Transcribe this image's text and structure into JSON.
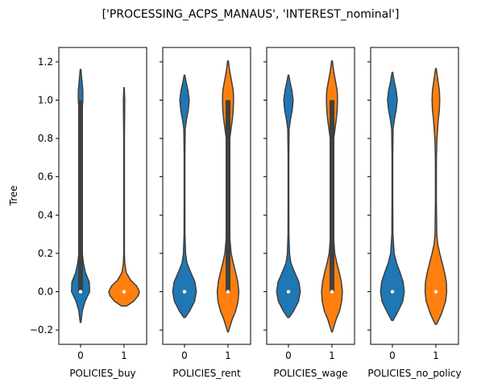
{
  "chart_data": {
    "type": "violin",
    "title": "['PROCESSING_ACPS_MANAUS', 'INTEREST_nominal']",
    "ylabel": "Tree",
    "ylim": [
      -0.275,
      1.275
    ],
    "yticks": [
      -0.2,
      0.0,
      0.2,
      0.4,
      0.6,
      0.8,
      1.0,
      1.2
    ],
    "ytick_labels": [
      "−0.2",
      "0.0",
      "0.2",
      "0.4",
      "0.6",
      "0.8",
      "1.0",
      "1.2"
    ],
    "sharey": true,
    "grid": false,
    "colors": {
      "0": "#1f77b4",
      "1": "#ff7f0e"
    },
    "panels": [
      {
        "xlabel": "POLICIES_buy",
        "categories": [
          "0",
          "1"
        ],
        "violins": [
          {
            "category": "0",
            "y_min": -0.16,
            "y_max": 1.16,
            "median": 0.0,
            "q1": 0.0,
            "q3": 1.0,
            "whisker_low": 0.0,
            "whisker_high": 1.0,
            "profile": [
              [
                -0.16,
                0.02
              ],
              [
                -0.1,
                0.1
              ],
              [
                -0.05,
                0.26
              ],
              [
                0.0,
                0.52
              ],
              [
                0.05,
                0.5
              ],
              [
                0.1,
                0.28
              ],
              [
                0.15,
                0.16
              ],
              [
                0.2,
                0.1
              ],
              [
                0.3,
                0.075
              ],
              [
                0.5,
                0.07
              ],
              [
                0.7,
                0.07
              ],
              [
                0.9,
                0.08
              ],
              [
                0.95,
                0.09
              ],
              [
                1.0,
                0.13
              ],
              [
                1.05,
                0.13
              ],
              [
                1.1,
                0.08
              ],
              [
                1.16,
                0.02
              ]
            ]
          },
          {
            "category": "1",
            "y_min": -0.075,
            "y_max": 1.065,
            "median": 0.0,
            "q1": 0.0,
            "q3": 0.0,
            "whisker_low": 0.0,
            "whisker_high": 0.0,
            "profile": [
              [
                -0.075,
                0.15
              ],
              [
                -0.05,
                0.55
              ],
              [
                -0.02,
                0.82
              ],
              [
                0.0,
                0.88
              ],
              [
                0.03,
                0.72
              ],
              [
                0.06,
                0.38
              ],
              [
                0.1,
                0.12
              ],
              [
                0.15,
                0.04
              ],
              [
                0.2,
                0.02
              ],
              [
                0.4,
                0.02
              ],
              [
                0.6,
                0.02
              ],
              [
                0.8,
                0.02
              ],
              [
                0.95,
                0.035
              ],
              [
                1.0,
                0.04
              ],
              [
                1.065,
                0.01
              ]
            ]
          }
        ]
      },
      {
        "xlabel": "POLICIES_rent",
        "categories": [
          "0",
          "1"
        ],
        "violins": [
          {
            "category": "0",
            "y_min": -0.135,
            "y_max": 1.13,
            "median": 0.0,
            "q1": 0.0,
            "q3": 0.0,
            "whisker_low": 0.0,
            "whisker_high": 0.0,
            "profile": [
              [
                -0.135,
                0.04
              ],
              [
                -0.1,
                0.3
              ],
              [
                -0.05,
                0.58
              ],
              [
                0.0,
                0.68
              ],
              [
                0.05,
                0.6
              ],
              [
                0.1,
                0.36
              ],
              [
                0.15,
                0.14
              ],
              [
                0.2,
                0.06
              ],
              [
                0.3,
                0.025
              ],
              [
                0.5,
                0.02
              ],
              [
                0.7,
                0.02
              ],
              [
                0.85,
                0.04
              ],
              [
                0.9,
                0.12
              ],
              [
                0.95,
                0.22
              ],
              [
                1.0,
                0.27
              ],
              [
                1.05,
                0.2
              ],
              [
                1.1,
                0.08
              ],
              [
                1.13,
                0.02
              ]
            ]
          },
          {
            "category": "1",
            "y_min": -0.21,
            "y_max": 1.205,
            "median": 0.0,
            "q1": 0.0,
            "q3": 1.0,
            "whisker_low": 0.0,
            "whisker_high": 1.0,
            "profile": [
              [
                -0.21,
                0.02
              ],
              [
                -0.15,
                0.22
              ],
              [
                -0.1,
                0.44
              ],
              [
                -0.05,
                0.58
              ],
              [
                0.0,
                0.62
              ],
              [
                0.05,
                0.56
              ],
              [
                0.1,
                0.44
              ],
              [
                0.15,
                0.3
              ],
              [
                0.2,
                0.18
              ],
              [
                0.3,
                0.08
              ],
              [
                0.5,
                0.055
              ],
              [
                0.7,
                0.06
              ],
              [
                0.8,
                0.1
              ],
              [
                0.9,
                0.25
              ],
              [
                0.95,
                0.3
              ],
              [
                1.0,
                0.32
              ],
              [
                1.05,
                0.3
              ],
              [
                1.1,
                0.2
              ],
              [
                1.15,
                0.1
              ],
              [
                1.205,
                0.02
              ]
            ]
          }
        ]
      },
      {
        "xlabel": "POLICIES_wage",
        "categories": [
          "0",
          "1"
        ],
        "violins": [
          {
            "category": "0",
            "y_min": -0.135,
            "y_max": 1.13,
            "median": 0.0,
            "q1": 0.0,
            "q3": 0.0,
            "whisker_low": 0.0,
            "whisker_high": 0.0,
            "profile": [
              [
                -0.135,
                0.04
              ],
              [
                -0.1,
                0.3
              ],
              [
                -0.05,
                0.58
              ],
              [
                0.0,
                0.68
              ],
              [
                0.05,
                0.6
              ],
              [
                0.1,
                0.36
              ],
              [
                0.15,
                0.14
              ],
              [
                0.2,
                0.06
              ],
              [
                0.3,
                0.025
              ],
              [
                0.5,
                0.02
              ],
              [
                0.7,
                0.02
              ],
              [
                0.85,
                0.04
              ],
              [
                0.9,
                0.12
              ],
              [
                0.95,
                0.22
              ],
              [
                1.0,
                0.27
              ],
              [
                1.05,
                0.2
              ],
              [
                1.1,
                0.08
              ],
              [
                1.13,
                0.02
              ]
            ]
          },
          {
            "category": "1",
            "y_min": -0.21,
            "y_max": 1.205,
            "median": 0.0,
            "q1": 0.0,
            "q3": 1.0,
            "whisker_low": 0.0,
            "whisker_high": 1.0,
            "profile": [
              [
                -0.21,
                0.02
              ],
              [
                -0.15,
                0.22
              ],
              [
                -0.1,
                0.44
              ],
              [
                -0.05,
                0.56
              ],
              [
                0.0,
                0.6
              ],
              [
                0.05,
                0.54
              ],
              [
                0.1,
                0.42
              ],
              [
                0.15,
                0.28
              ],
              [
                0.2,
                0.16
              ],
              [
                0.3,
                0.075
              ],
              [
                0.5,
                0.05
              ],
              [
                0.7,
                0.055
              ],
              [
                0.8,
                0.1
              ],
              [
                0.9,
                0.25
              ],
              [
                0.95,
                0.3
              ],
              [
                1.0,
                0.32
              ],
              [
                1.05,
                0.3
              ],
              [
                1.1,
                0.2
              ],
              [
                1.15,
                0.1
              ],
              [
                1.205,
                0.02
              ]
            ]
          }
        ]
      },
      {
        "xlabel": "POLICIES_no_policy",
        "categories": [
          "0",
          "1"
        ],
        "violins": [
          {
            "category": "0",
            "y_min": -0.15,
            "y_max": 1.145,
            "median": 0.0,
            "q1": 0.0,
            "q3": 0.0,
            "whisker_low": 0.0,
            "whisker_high": 0.0,
            "profile": [
              [
                -0.15,
                0.04
              ],
              [
                -0.1,
                0.34
              ],
              [
                -0.05,
                0.6
              ],
              [
                0.0,
                0.68
              ],
              [
                0.05,
                0.62
              ],
              [
                0.1,
                0.44
              ],
              [
                0.15,
                0.24
              ],
              [
                0.2,
                0.1
              ],
              [
                0.3,
                0.03
              ],
              [
                0.5,
                0.02
              ],
              [
                0.7,
                0.02
              ],
              [
                0.85,
                0.04
              ],
              [
                0.9,
                0.12
              ],
              [
                0.95,
                0.22
              ],
              [
                1.0,
                0.28
              ],
              [
                1.05,
                0.22
              ],
              [
                1.1,
                0.1
              ],
              [
                1.145,
                0.02
              ]
            ]
          },
          {
            "category": "1",
            "y_min": -0.17,
            "y_max": 1.165,
            "median": 0.0,
            "q1": 0.0,
            "q3": 0.0,
            "whisker_low": 0.0,
            "whisker_high": 0.0,
            "profile": [
              [
                -0.17,
                0.04
              ],
              [
                -0.12,
                0.3
              ],
              [
                -0.05,
                0.56
              ],
              [
                0.0,
                0.62
              ],
              [
                0.05,
                0.6
              ],
              [
                0.1,
                0.5
              ],
              [
                0.15,
                0.36
              ],
              [
                0.2,
                0.22
              ],
              [
                0.25,
                0.1
              ],
              [
                0.3,
                0.05
              ],
              [
                0.5,
                0.025
              ],
              [
                0.7,
                0.03
              ],
              [
                0.8,
                0.06
              ],
              [
                0.9,
                0.14
              ],
              [
                0.95,
                0.2
              ],
              [
                1.0,
                0.22
              ],
              [
                1.05,
                0.2
              ],
              [
                1.1,
                0.12
              ],
              [
                1.165,
                0.02
              ]
            ]
          }
        ]
      }
    ]
  }
}
